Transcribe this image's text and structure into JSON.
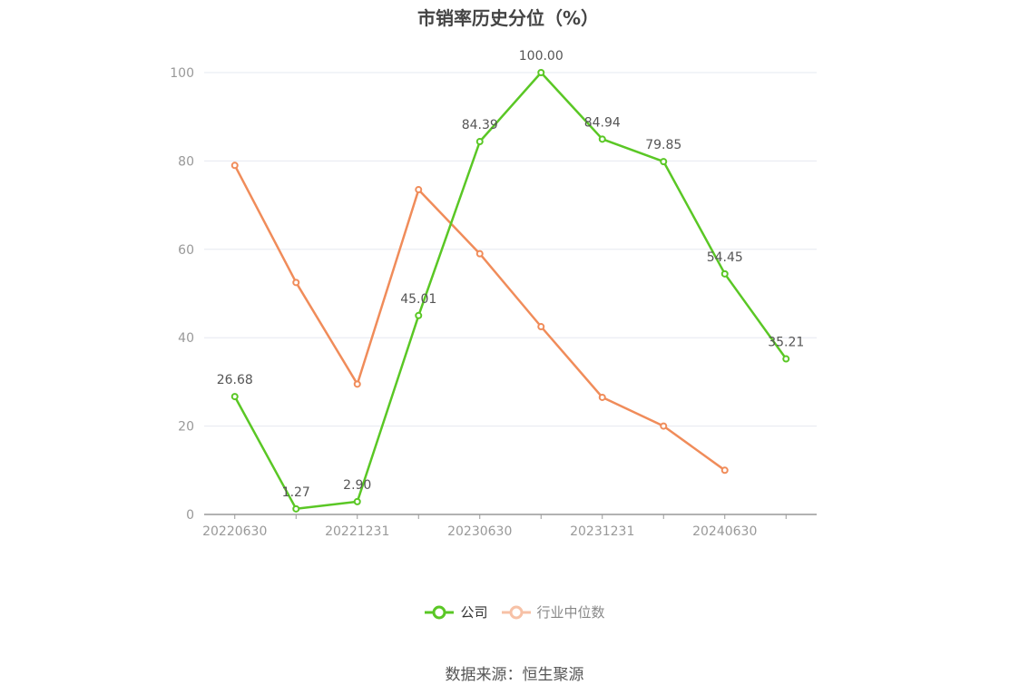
{
  "chart_data": {
    "type": "line",
    "title": "市销率历史分位（%）",
    "x": [
      "20220630",
      "20220930",
      "20221231",
      "20230331",
      "20230630",
      "20230930",
      "20231231",
      "20240331",
      "20240630",
      "20240930"
    ],
    "x_tick_labels": [
      "20220630",
      "20221231",
      "20230630",
      "20231231",
      "20240630"
    ],
    "y_ticks": [
      0,
      20,
      40,
      60,
      80,
      100
    ],
    "ylim": [
      0,
      100
    ],
    "grid": true,
    "legend_position": "bottom",
    "series": [
      {
        "name": "公司",
        "color": "#5ac725",
        "values": [
          26.68,
          1.27,
          2.9,
          45.01,
          84.39,
          100.0,
          84.94,
          79.85,
          54.45,
          35.21
        ],
        "data_labels": [
          "26.68",
          "1.27",
          "2.90",
          "45.01",
          "84.39",
          "100.00",
          "84.94",
          "79.85",
          "54.45",
          "35.21"
        ]
      },
      {
        "name": "行业中位数",
        "color": "#f08c5a",
        "values": [
          79,
          52.5,
          29.5,
          73.5,
          59,
          42.5,
          26.5,
          20,
          10,
          null
        ]
      }
    ]
  },
  "legend": {
    "company_label": "公司",
    "industry_label": "行业中位数"
  },
  "source_text": "数据来源：恒生聚源"
}
